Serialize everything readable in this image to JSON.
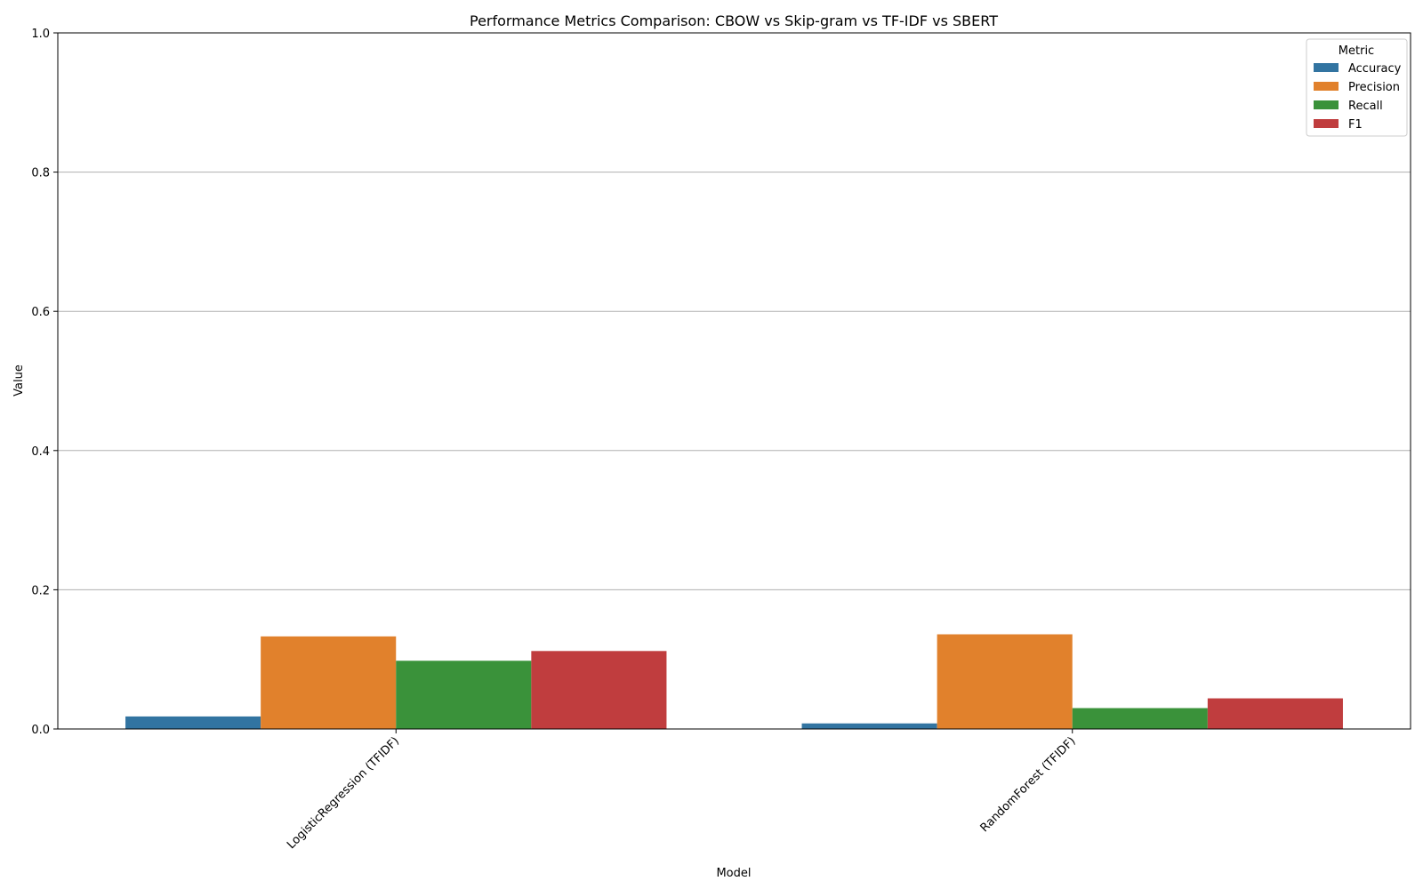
{
  "chart_data": {
    "type": "bar",
    "title": "Performance Metrics Comparison: CBOW vs Skip-gram vs TF-IDF vs SBERT",
    "xlabel": "Model",
    "ylabel": "Value",
    "ylim": [
      0,
      1.0
    ],
    "yticks": [
      "0.0",
      "0.2",
      "0.4",
      "0.6",
      "0.8",
      "1.0"
    ],
    "grid": "horizontal",
    "legend": {
      "title": "Metric",
      "placement": "top-right"
    },
    "categories": [
      "LogisticRegression (TFIDF)",
      "RandomForest (TFIDF)"
    ],
    "series": [
      {
        "name": "Accuracy",
        "color": "#3274a1",
        "values": [
          0.018,
          0.008
        ]
      },
      {
        "name": "Precision",
        "color": "#e1812c",
        "values": [
          0.133,
          0.136
        ]
      },
      {
        "name": "Recall",
        "color": "#3a923a",
        "values": [
          0.098,
          0.03
        ]
      },
      {
        "name": "F1",
        "color": "#c03d3e",
        "values": [
          0.112,
          0.044
        ]
      }
    ]
  }
}
